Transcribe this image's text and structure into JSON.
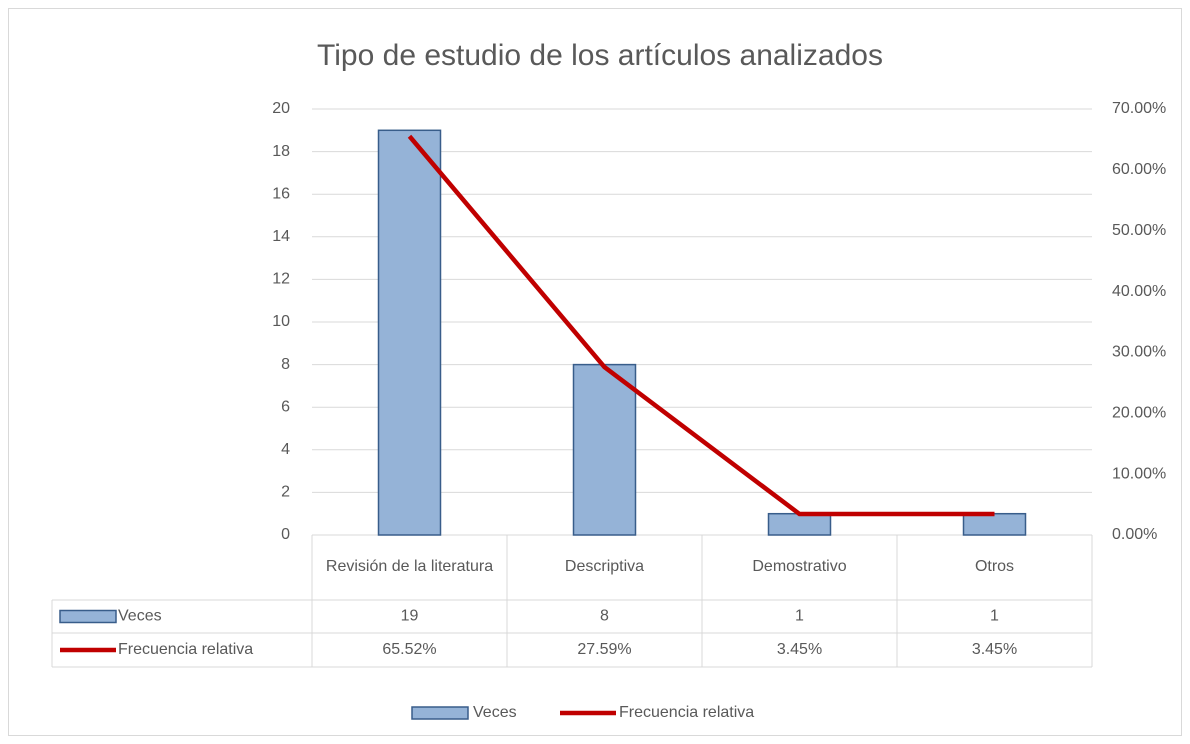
{
  "chart_data": {
    "type": "bar_line",
    "title": "Tipo de estudio de los artículos analizados",
    "categories": [
      "Revisión de la literatura",
      "Descriptiva",
      "Demostrativo",
      "Otros"
    ],
    "series": [
      {
        "name": "Veces",
        "type": "bar",
        "color": "#95b3d7",
        "values": [
          19,
          8,
          1,
          1
        ]
      },
      {
        "name": "Frecuencia relativa",
        "type": "line",
        "color": "#c00000",
        "axis": "y2",
        "values": [
          65.52,
          27.59,
          3.45,
          3.45
        ],
        "value_labels": [
          "65.52%",
          "27.59%",
          "3.45%",
          "3.45%"
        ]
      }
    ],
    "ylim": [
      0,
      20
    ],
    "yticks": [
      0,
      2,
      4,
      6,
      8,
      10,
      12,
      14,
      16,
      18,
      20
    ],
    "y2lim": [
      0,
      70
    ],
    "y2ticks": [
      {
        "value": 0,
        "label": "0.00%"
      },
      {
        "value": 10,
        "label": "10.00%"
      },
      {
        "value": 20,
        "label": "20.00%"
      },
      {
        "value": 30,
        "label": "30.00%"
      },
      {
        "value": 40,
        "label": "40.00%"
      },
      {
        "value": 50,
        "label": "50.00%"
      },
      {
        "value": 60,
        "label": "60.00%"
      },
      {
        "value": 70,
        "label": "70.00%"
      }
    ],
    "grid": true,
    "legend": "bottom"
  }
}
